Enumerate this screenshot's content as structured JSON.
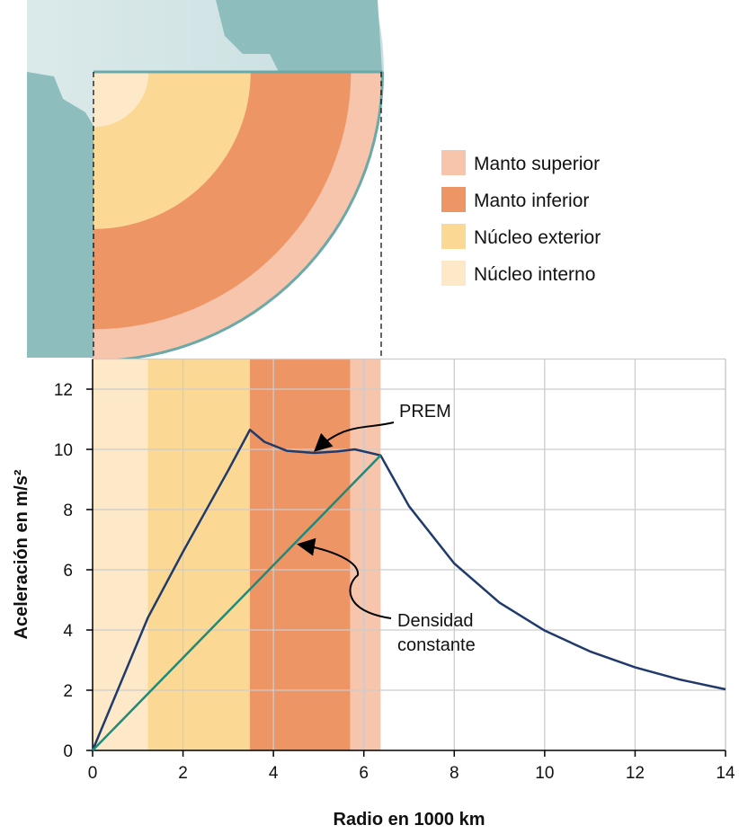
{
  "chart_data": {
    "type": "line",
    "xlabel": "Radio en 1000 km",
    "ylabel": "Aceleración en m/s²",
    "xlim": [
      0,
      14
    ],
    "ylim": [
      0,
      13
    ],
    "xticks": [
      0,
      2,
      4,
      6,
      8,
      10,
      12,
      14
    ],
    "yticks": [
      0,
      2,
      4,
      6,
      8,
      10,
      12
    ],
    "grid": true,
    "legend_position": "top-right",
    "legend": [
      {
        "label": "Manto superior",
        "color": "#f7c4ac"
      },
      {
        "label": "Manto inferior",
        "color": "#ee9566"
      },
      {
        "label": "Núcleo exterior",
        "color": "#fbd994"
      },
      {
        "label": "Núcleo interno",
        "color": "#fde9c8"
      }
    ],
    "regions": [
      {
        "name": "Núcleo interno",
        "from": 0,
        "to": 1.22,
        "color": "#fde9c8"
      },
      {
        "name": "Núcleo exterior",
        "from": 1.22,
        "to": 3.48,
        "color": "#fbd994"
      },
      {
        "name": "Manto inferior",
        "from": 3.48,
        "to": 5.7,
        "color": "#ee9566"
      },
      {
        "name": "Manto superior",
        "from": 5.7,
        "to": 6.37,
        "color": "#f7c4ac"
      }
    ],
    "series": [
      {
        "name": "PREM",
        "color": "#1f3a6b",
        "x": [
          0,
          1.22,
          2.0,
          3.0,
          3.48,
          3.8,
          4.3,
          4.9,
          5.4,
          5.8,
          6.37,
          7,
          8,
          9,
          10,
          11,
          12,
          13,
          14
        ],
        "y": [
          0,
          4.4,
          6.6,
          9.3,
          10.65,
          10.25,
          9.95,
          9.88,
          9.93,
          10.0,
          9.8,
          8.11,
          6.21,
          4.91,
          3.98,
          3.29,
          2.76,
          2.35,
          2.03
        ]
      },
      {
        "name": "Densidad constante",
        "color": "#1f8a78",
        "x": [
          0,
          6.37
        ],
        "y": [
          0,
          9.8
        ]
      }
    ],
    "annotations": [
      "PREM",
      "Densidad",
      "constante"
    ]
  }
}
